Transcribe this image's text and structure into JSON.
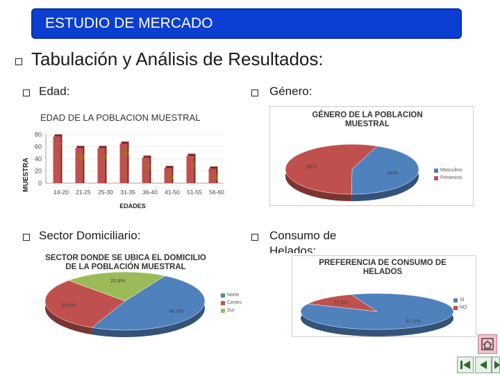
{
  "slide": {
    "title": "ESTUDIO DE MERCADO",
    "heading": "Tabulación y Análisis de Resultados:",
    "bullets": {
      "edad": "Edad:",
      "genero": "Género:",
      "sector": "Sector Domiciliario:",
      "consumo_line1": "Consumo de",
      "consumo_line2": "Helados:"
    }
  },
  "chart_data": [
    {
      "type": "bar",
      "title": "EDAD DE LA POBLACION MUESTRAL",
      "xlabel": "EDADES",
      "ylabel": "MUESTRA",
      "categories": [
        "14-20",
        "21-25",
        "25-30",
        "31-35",
        "36-40",
        "41-50",
        "51-55",
        "56-60"
      ],
      "values": [
        77,
        58,
        58,
        65,
        42,
        25,
        45,
        24
      ],
      "y_ticks": [
        "0",
        "20",
        "40",
        "60",
        "80"
      ],
      "ylim": [
        0,
        80
      ],
      "color": "#c0504d"
    },
    {
      "type": "pie",
      "title_line1": "GÉNERO DE LA POBLACION",
      "title_line2": "MUESTRAL",
      "slices": [
        {
          "label": "Masculino",
          "value": 44,
          "text": "44%",
          "color": "#4f81bd"
        },
        {
          "label": "Femenino",
          "value": 56,
          "text": "56%",
          "color": "#c0504d"
        }
      ]
    },
    {
      "type": "pie",
      "title_line1": "SECTOR DONDE SE UBICA EL DOMICILIO",
      "title_line2": "DE LA POBLACIÓN MUESTRAL",
      "slices": [
        {
          "label": "Norte",
          "value": 48.5,
          "text": "48.5%",
          "color": "#4f81bd"
        },
        {
          "label": "Centro",
          "value": 30.8,
          "text": "30.8%",
          "color": "#c0504d"
        },
        {
          "label": "Sur",
          "value": 20.8,
          "text": "20.8%",
          "color": "#9bbb59"
        }
      ]
    },
    {
      "type": "pie",
      "title_line1": "PREFERENCIA DE CONSUMO DE",
      "title_line2": "HELADOS",
      "slices": [
        {
          "label": "SI",
          "value": 87.5,
          "text": "87.5%",
          "color": "#4f81bd"
        },
        {
          "label": "NO",
          "value": 12.5,
          "text": "12.5%",
          "color": "#c0504d"
        }
      ]
    }
  ],
  "nav": {
    "home_icon": "home-icon",
    "prev_icon": "triangle-left-icon",
    "next_icon": "triangle-right-icon",
    "end_icon": "skip-end-icon"
  },
  "colors": {
    "title_bar": "#0b3fd1",
    "bar": "#c0504d"
  }
}
